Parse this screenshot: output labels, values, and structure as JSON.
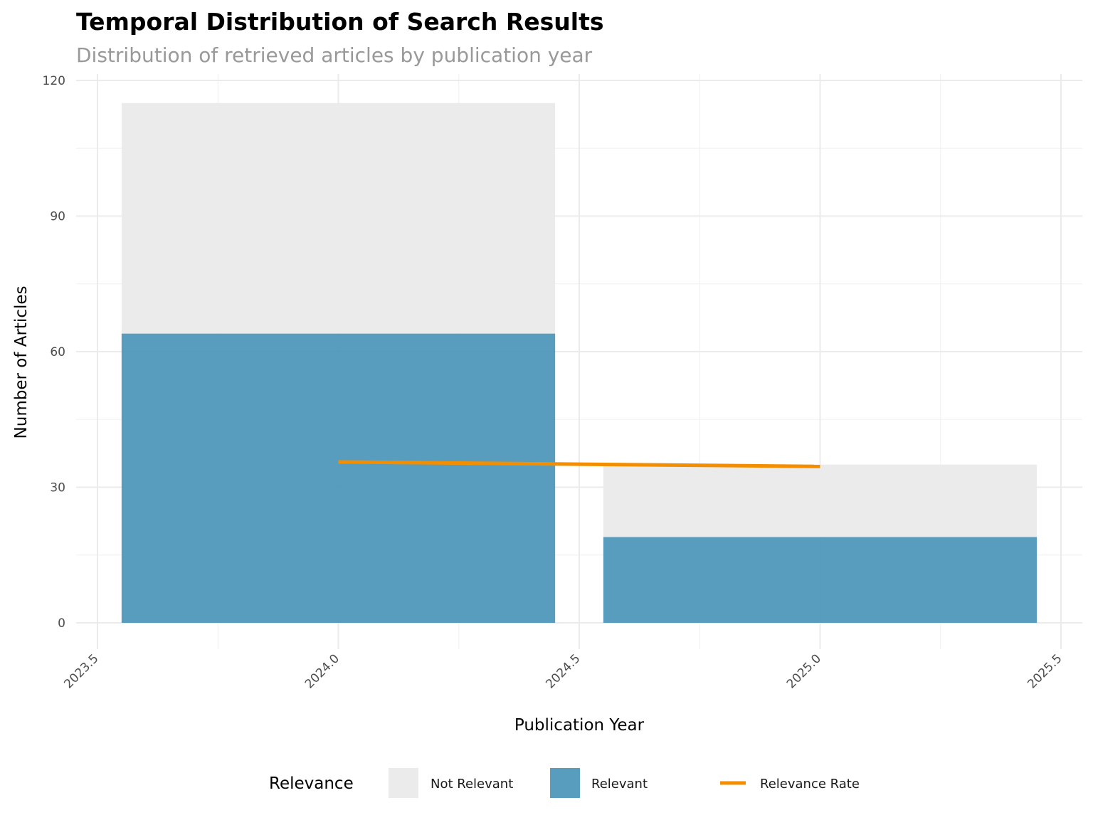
{
  "chart_data": {
    "type": "bar",
    "title": "Temporal Distribution of Search Results",
    "subtitle": "Distribution of retrieved articles by publication year",
    "xlabel": "Publication Year",
    "ylabel": "Number of Articles",
    "xlim": [
      2023.5,
      2025.5
    ],
    "ylim": [
      0,
      120
    ],
    "x_ticks": [
      "2023.5",
      "2024.0",
      "2024.5",
      "2025.0",
      "2025.5"
    ],
    "y_ticks": [
      "0",
      "30",
      "60",
      "90",
      "120"
    ],
    "grid": true,
    "stacked": true,
    "bar_width": 0.9,
    "x": [
      2024,
      2025
    ],
    "series": [
      {
        "name": "Not Relevant",
        "values": [
          51,
          16
        ],
        "color": "#ebebeb"
      },
      {
        "name": "Relevant",
        "values": [
          64,
          19
        ],
        "color": "#4f97ba"
      }
    ],
    "line": {
      "name": "Relevance Rate",
      "x": [
        2024,
        2025
      ],
      "y": [
        35.6,
        34.6
      ],
      "color": "#f28e00"
    },
    "legend": {
      "title": "Relevance",
      "position": "bottom"
    }
  }
}
